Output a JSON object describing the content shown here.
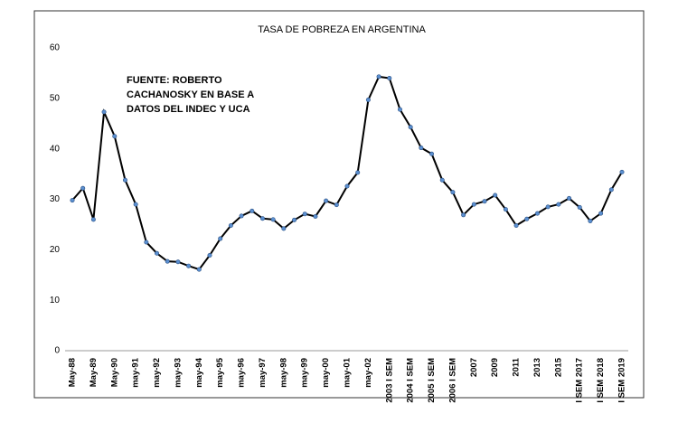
{
  "chart_data": {
    "type": "line",
    "title": "TASA DE POBREZA EN ARGENTINA",
    "annotation": [
      "FUENTE: ROBERTO",
      "CACHANOSKY EN BASE A",
      "DATOS DEL INDEC Y UCA"
    ],
    "categories": [
      "May-88",
      null,
      "May-89",
      null,
      "May-90",
      null,
      "may-91",
      null,
      "may-92",
      null,
      "may-93",
      null,
      "may-94",
      null,
      "may-95",
      null,
      "may-96",
      null,
      "may-97",
      null,
      "may-98",
      null,
      "may-99",
      null,
      "may-00",
      null,
      "may-01",
      null,
      "may-02",
      null,
      "2003 I SEM",
      null,
      "2004 I SEM",
      null,
      "2005 I SEM",
      null,
      "2006 I SEM",
      null,
      "2007",
      null,
      "2009",
      null,
      "2011",
      null,
      "2013",
      null,
      "2015",
      null,
      "I SEM 2017",
      null,
      "I SEM 2018",
      null,
      "I SEM 2019"
    ],
    "values": [
      29.8,
      32.2,
      26,
      47.3,
      42.5,
      33.8,
      29,
      21.5,
      19.3,
      17.7,
      17.6,
      16.8,
      16.1,
      18.9,
      22.2,
      24.8,
      26.7,
      27.7,
      26.2,
      26,
      24.2,
      25.9,
      27.1,
      26.6,
      29.7,
      28.9,
      32.6,
      35.3,
      49.7,
      54.3,
      54,
      47.8,
      44.3,
      40.2,
      39,
      33.8,
      31.4,
      26.9,
      29,
      29.6,
      30.8,
      28,
      24.8,
      26.1,
      27.2,
      28.5,
      29,
      30.2,
      28.4,
      25.7,
      27.2,
      31.9,
      35.4
    ],
    "color": "#000000",
    "marker_color": "#5b8fd0",
    "ylim": [
      0,
      60
    ],
    "yticks": [
      0,
      10,
      20,
      30,
      40,
      50,
      60
    ],
    "grid": false
  }
}
